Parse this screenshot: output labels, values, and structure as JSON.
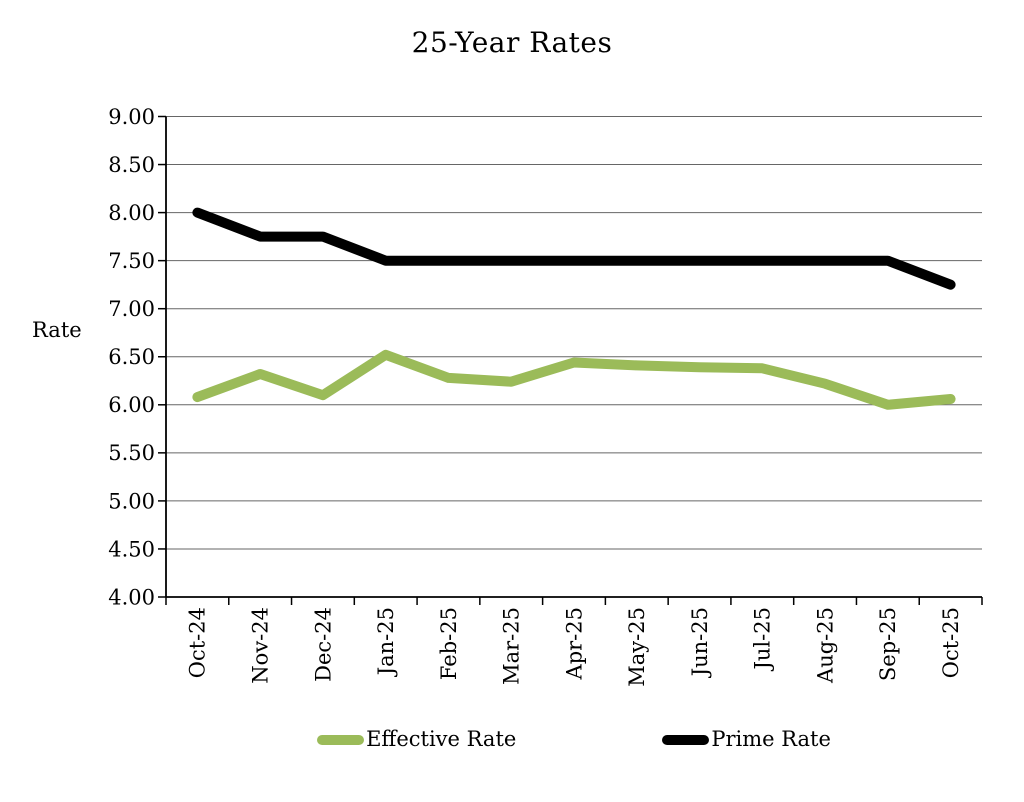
{
  "chart": {
    "title": "25-Year Rates",
    "y_axis_title": "Rate"
  },
  "chart_data": {
    "type": "line",
    "title": "25-Year Rates",
    "ylabel": "Rate",
    "xlabel": "",
    "categories": [
      "Oct-24",
      "Nov-24",
      "Dec-24",
      "Jan-25",
      "Feb-25",
      "Mar-25",
      "Apr-25",
      "May-25",
      "Jun-25",
      "Jul-25",
      "Aug-25",
      "Sep-25",
      "Oct-25"
    ],
    "series": [
      {
        "name": "Effective Rate",
        "color": "#9bbb59",
        "values": [
          6.08,
          6.32,
          6.1,
          6.52,
          6.28,
          6.24,
          6.44,
          6.41,
          6.39,
          6.38,
          6.22,
          6.0,
          6.06
        ]
      },
      {
        "name": "Prime Rate",
        "color": "#000000",
        "values": [
          8.0,
          7.75,
          7.75,
          7.5,
          7.5,
          7.5,
          7.5,
          7.5,
          7.5,
          7.5,
          7.5,
          7.5,
          7.25
        ]
      }
    ],
    "ylim": [
      4.0,
      9.0
    ],
    "ytick_step": 0.5,
    "ytick_labels": [
      "4.00",
      "4.50",
      "5.00",
      "5.50",
      "6.00",
      "6.50",
      "7.00",
      "7.50",
      "8.00",
      "8.50",
      "9.00"
    ],
    "grid": true,
    "legend_position": "bottom",
    "colors": {
      "gridline": "#666666",
      "axis": "#000000",
      "text": "#000000"
    }
  }
}
